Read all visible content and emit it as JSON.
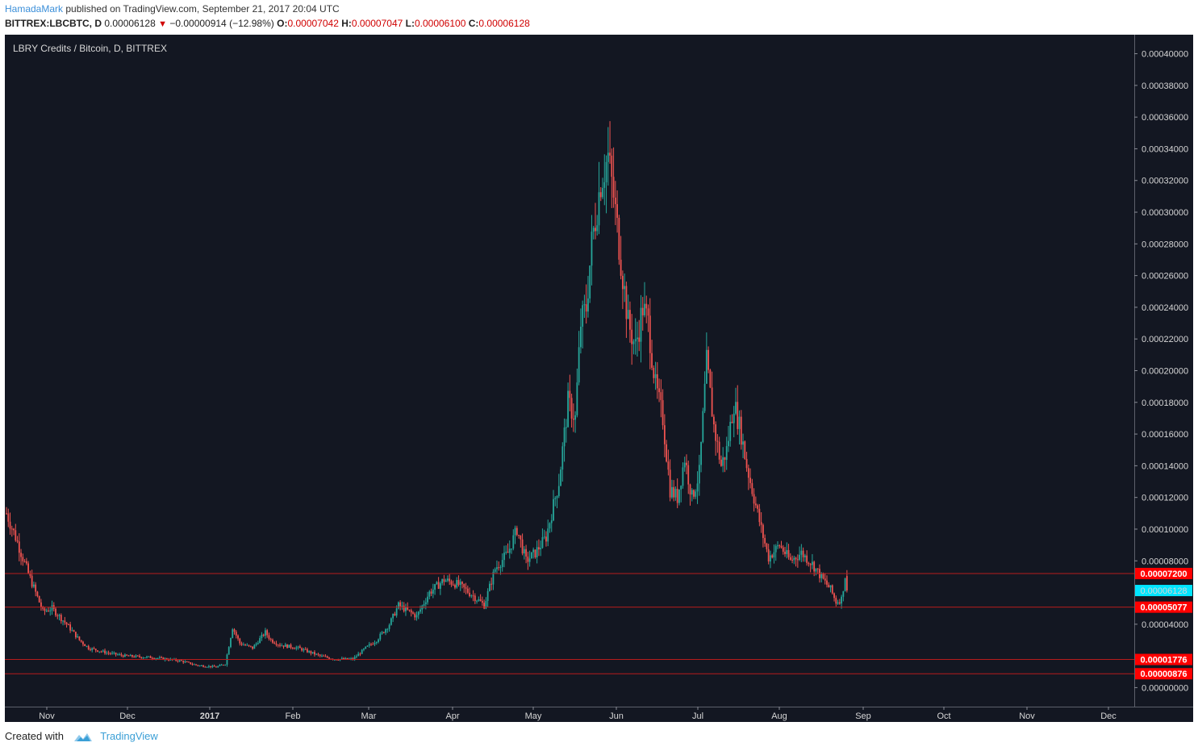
{
  "header": {
    "author": "HamadaMark",
    "published_text": "published on TradingView.com, September 21, 2017 20:04 UTC",
    "symbol": "BITTREX:LBCBTC, D",
    "last": "0.00006128",
    "change": "−0.00000914 (−12.98%)",
    "open_label": "O:",
    "open": "0.00007042",
    "high_label": "H:",
    "high": "0.00007047",
    "low_label": "L:",
    "low": "0.00006100",
    "close_label": "C:",
    "close": "0.00006128"
  },
  "legend": "LBRY Credits / Bitcoin, D, BITTREX",
  "footer": {
    "created_with": "Created with",
    "brand": "TradingView"
  },
  "colors": {
    "background": "#131722",
    "up": "#26a69a",
    "down": "#ef5350",
    "line": "#b71c1c",
    "tag_red": "#ff0000",
    "tag_current": "#00e5ff"
  },
  "chart_data": {
    "type": "candlestick",
    "x_tick_labels": [
      "Nov",
      "Dec",
      "2017",
      "Feb",
      "Mar",
      "Apr",
      "May",
      "Jun",
      "Jul",
      "Aug",
      "Sep",
      "Oct",
      "Nov",
      "Dec"
    ],
    "y_tick_labels": [
      "0.00040000",
      "0.00038000",
      "0.00036000",
      "0.00034000",
      "0.00032000",
      "0.00030000",
      "0.00028000",
      "0.00026000",
      "0.00024000",
      "0.00022000",
      "0.00020000",
      "0.00018000",
      "0.00016000",
      "0.00014000",
      "0.00012000",
      "0.00010000",
      "0.00008000",
      "0.00004000",
      "0.00000000"
    ],
    "y_tick_values": [
      0.0004,
      0.00038,
      0.00036,
      0.00034,
      0.00032,
      0.0003,
      0.00028,
      0.00026,
      0.00024,
      0.00022,
      0.0002,
      0.00018,
      0.00016,
      0.00014,
      0.00012,
      0.0001,
      8e-05,
      4e-05,
      0
    ],
    "ylim": [
      -1.2e-05,
      0.000412
    ],
    "horizontal_levels": [
      {
        "value": 7.2e-05,
        "label": "0.00007200"
      },
      {
        "value": 5.077e-05,
        "label": "0.00005077"
      },
      {
        "value": 1.776e-05,
        "label": "0.00001776"
      },
      {
        "value": 8.76e-06,
        "label": "0.00000876"
      }
    ],
    "current_price": {
      "value": 6.128e-05,
      "label": "0.00006128"
    },
    "price_path": [
      [
        0,
        0.00011
      ],
      [
        5,
        9.5e-05
      ],
      [
        12,
        7.2e-05
      ],
      [
        20,
        4.8e-05
      ],
      [
        25,
        5e-05
      ],
      [
        33,
        4e-05
      ],
      [
        40,
        3e-05
      ],
      [
        45,
        2.5e-05
      ],
      [
        55,
        2.2e-05
      ],
      [
        65,
        2e-05
      ],
      [
        80,
        1.9e-05
      ],
      [
        95,
        1.7e-05
      ],
      [
        105,
        1.4e-05
      ],
      [
        115,
        1.3e-05
      ],
      [
        120,
        1.5e-05
      ],
      [
        124,
        3.8e-05
      ],
      [
        128,
        2.8e-05
      ],
      [
        135,
        2.5e-05
      ],
      [
        142,
        3.5e-05
      ],
      [
        145,
        3e-05
      ],
      [
        150,
        2.7e-05
      ],
      [
        160,
        2.5e-05
      ],
      [
        172,
        2e-05
      ],
      [
        180,
        1.8e-05
      ],
      [
        190,
        1.8e-05
      ],
      [
        197,
        2.5e-05
      ],
      [
        203,
        3e-05
      ],
      [
        210,
        4e-05
      ],
      [
        215,
        5.2e-05
      ],
      [
        225,
        4.5e-05
      ],
      [
        232,
        6e-05
      ],
      [
        240,
        6.8e-05
      ],
      [
        248,
        6.5e-05
      ],
      [
        256,
        5.8e-05
      ],
      [
        262,
        5.2e-05
      ],
      [
        268,
        7.5e-05
      ],
      [
        275,
        8.5e-05
      ],
      [
        280,
        0.0001
      ],
      [
        285,
        8e-05
      ],
      [
        290,
        8.5e-05
      ],
      [
        296,
        9.5e-05
      ],
      [
        303,
        0.00013
      ],
      [
        308,
        0.00018
      ],
      [
        312,
        0.00017
      ],
      [
        315,
        0.00023
      ],
      [
        318,
        0.00024
      ],
      [
        321,
        0.00028
      ],
      [
        326,
        0.00032
      ],
      [
        330,
        0.000335
      ],
      [
        333,
        0.00031
      ],
      [
        337,
        0.00027
      ],
      [
        341,
        0.00023
      ],
      [
        345,
        0.000215
      ],
      [
        349,
        0.00024
      ],
      [
        352,
        0.00023
      ],
      [
        356,
        0.00019
      ],
      [
        360,
        0.00017
      ],
      [
        364,
        0.000125
      ],
      [
        368,
        0.00012
      ],
      [
        372,
        0.000145
      ],
      [
        376,
        0.00012
      ],
      [
        380,
        0.000135
      ],
      [
        384,
        0.000205
      ],
      [
        388,
        0.000165
      ],
      [
        392,
        0.00014
      ],
      [
        395,
        0.00015
      ],
      [
        399,
        0.00018
      ],
      [
        403,
        0.00016
      ],
      [
        406,
        0.00014
      ],
      [
        410,
        0.00012
      ],
      [
        414,
        0.0001
      ],
      [
        418,
        8.2e-05
      ],
      [
        424,
        9e-05
      ],
      [
        430,
        8e-05
      ],
      [
        436,
        8.5e-05
      ],
      [
        442,
        7.8e-05
      ],
      [
        448,
        6.8e-05
      ],
      [
        452,
        6.2e-05
      ],
      [
        455,
        5.4e-05
      ],
      [
        458,
        5.6e-05
      ],
      [
        460,
        7.04e-05
      ],
      [
        461,
        6.13e-05
      ]
    ]
  }
}
